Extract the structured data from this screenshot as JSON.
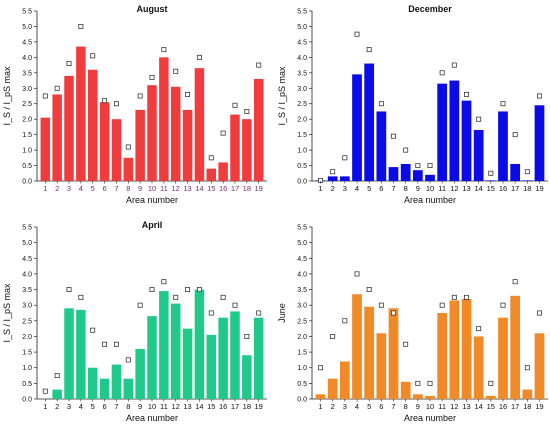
{
  "chart_data": [
    {
      "type": "bar",
      "title": "August",
      "xlabel": "Area number",
      "ylabel": "I_S / I_pS max",
      "ylim": [
        0,
        5.5
      ],
      "yticks": [
        "0.0",
        "0.5",
        "1.0",
        "1.5",
        "2.0",
        "2.5",
        "3.0",
        "3.5",
        "4.0",
        "4.5",
        "5.0",
        "5.5"
      ],
      "categories": [
        "1",
        "2",
        "3",
        "4",
        "5",
        "6",
        "7",
        "8",
        "9",
        "10",
        "11",
        "12",
        "13",
        "14",
        "15",
        "16",
        "17",
        "18",
        "19"
      ],
      "tick_label_color": "#7b2b75",
      "series": [
        {
          "values": [
            2.05,
            2.8,
            3.4,
            4.35,
            3.6,
            2.55,
            2.0,
            0.75,
            2.3,
            3.1,
            4.0,
            3.05,
            2.3,
            3.65,
            0.4,
            0.6,
            2.15,
            2.0,
            3.3
          ],
          "color": "#f03c3c"
        },
        {
          "marker": "open-square",
          "values": [
            2.75,
            3.0,
            3.8,
            5.0,
            4.05,
            2.6,
            2.5,
            1.1,
            2.75,
            3.35,
            4.25,
            3.55,
            2.8,
            4.0,
            0.75,
            1.55,
            2.45,
            2.25,
            3.75
          ]
        }
      ]
    },
    {
      "type": "bar",
      "title": "December",
      "xlabel": "Area number",
      "ylabel": "I_S / I_pS max",
      "ylim": [
        0,
        5.5
      ],
      "yticks": [
        "0.0",
        "0.5",
        "1.0",
        "1.5",
        "2.0",
        "2.5",
        "3.0",
        "3.5",
        "4.0",
        "4.5",
        "5.0",
        "5.5"
      ],
      "categories": [
        "1",
        "2",
        "3",
        "4",
        "5",
        "6",
        "7",
        "8",
        "9",
        "10",
        "11",
        "12",
        "13",
        "14",
        "15",
        "16",
        "17",
        "18",
        "19"
      ],
      "tick_label_color": "#111111",
      "series": [
        {
          "values": [
            0.02,
            0.15,
            0.15,
            3.45,
            3.8,
            2.25,
            0.45,
            0.55,
            0.35,
            0.2,
            3.15,
            3.25,
            2.6,
            1.65,
            0.02,
            2.25,
            0.55,
            0.02,
            2.45
          ],
          "color": "#0b0bea"
        },
        {
          "marker": "open-square",
          "values": [
            0.02,
            0.3,
            0.75,
            4.75,
            4.25,
            2.5,
            1.45,
            1.0,
            0.5,
            0.5,
            3.5,
            3.75,
            2.8,
            2.0,
            0.25,
            2.5,
            1.5,
            0.3,
            2.75
          ]
        }
      ]
    },
    {
      "type": "bar",
      "title": "April",
      "xlabel": "Area number",
      "ylabel": "I_S / I_pS max",
      "ylim": [
        0,
        5.5
      ],
      "yticks": [
        "0.0",
        "0.5",
        "1.0",
        "1.5",
        "2.0",
        "2.5",
        "3.0",
        "3.5",
        "4.0",
        "4.5",
        "5.0",
        "5.5"
      ],
      "categories": [
        "1",
        "2",
        "3",
        "4",
        "5",
        "6",
        "7",
        "8",
        "9",
        "10",
        "11",
        "12",
        "13",
        "14",
        "15",
        "16",
        "17",
        "18",
        "19"
      ],
      "tick_label_color": "#111111",
      "series": [
        {
          "values": [
            0.0,
            0.3,
            2.9,
            2.85,
            1.0,
            0.65,
            1.1,
            0.65,
            1.6,
            2.65,
            3.45,
            3.05,
            2.25,
            3.5,
            2.05,
            2.6,
            2.8,
            1.4,
            2.6
          ],
          "color": "#1ec98a"
        },
        {
          "marker": "open-square",
          "values": [
            0.25,
            0.75,
            3.5,
            3.25,
            2.2,
            1.75,
            1.75,
            1.25,
            3.0,
            3.5,
            3.75,
            3.25,
            3.5,
            3.5,
            2.75,
            3.25,
            3.0,
            2.0,
            2.75
          ]
        }
      ]
    },
    {
      "type": "bar",
      "title": "",
      "xlabel": "Area number",
      "ylabel": "June",
      "ylim": [
        0,
        5.5
      ],
      "yticks": [
        "0.0",
        "0.5",
        "1.0",
        "1.5",
        "2.0",
        "2.5",
        "3.0",
        "3.5",
        "4.0",
        "4.5",
        "5.0",
        "5.5"
      ],
      "categories": [
        "1",
        "2",
        "3",
        "4",
        "5",
        "6",
        "7",
        "8",
        "9",
        "10",
        "11",
        "12",
        "13",
        "14",
        "15",
        "16",
        "17",
        "18",
        "19"
      ],
      "tick_label_color": "#111111",
      "series": [
        {
          "values": [
            0.15,
            0.65,
            1.2,
            3.35,
            2.95,
            2.1,
            2.9,
            0.55,
            0.15,
            0.1,
            2.75,
            3.15,
            3.2,
            2.0,
            0.1,
            2.6,
            3.3,
            0.3,
            2.1
          ],
          "color": "#f08a28"
        },
        {
          "marker": "open-square",
          "values": [
            1.0,
            2.0,
            2.5,
            4.0,
            3.5,
            3.0,
            2.75,
            1.75,
            0.5,
            0.5,
            3.0,
            3.25,
            3.25,
            2.25,
            0.5,
            3.0,
            3.75,
            1.0,
            2.75
          ]
        }
      ]
    }
  ]
}
